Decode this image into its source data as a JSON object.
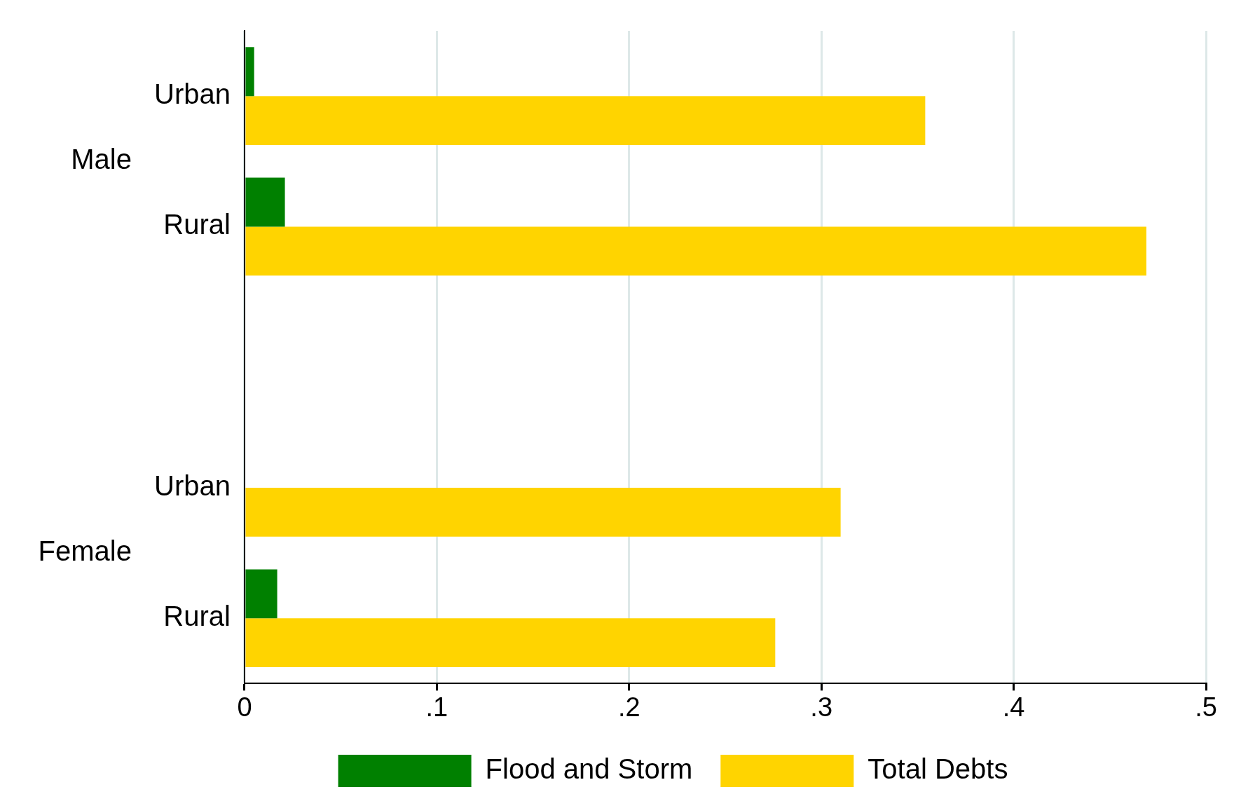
{
  "chart_data": {
    "type": "bar",
    "orientation": "horizontal",
    "categories": [
      "Urban",
      "Rural",
      null,
      "Urban",
      "Rural"
    ],
    "series": [
      {
        "name": "Flood and Storm",
        "color": "#008000",
        "values": [
          0.005,
          0.021,
          null,
          null,
          0.017
        ]
      },
      {
        "name": "Total Debts",
        "color": "#ffd400",
        "values": [
          0.354,
          0.469,
          null,
          0.31,
          0.276
        ]
      }
    ],
    "xlim": [
      0,
      0.5
    ],
    "xticks": [
      0,
      {
        "value": 0.1,
        "label": ".1"
      },
      {
        "value": 0.2,
        "label": ".2"
      },
      {
        "value": 0.3,
        "label": ".3"
      },
      {
        "value": 0.4,
        "label": ".4"
      },
      {
        "value": 0.5,
        "label": ".5"
      }
    ],
    "annotations": [
      "Male",
      "Female"
    ],
    "grid": "x",
    "legend": "bottom"
  }
}
